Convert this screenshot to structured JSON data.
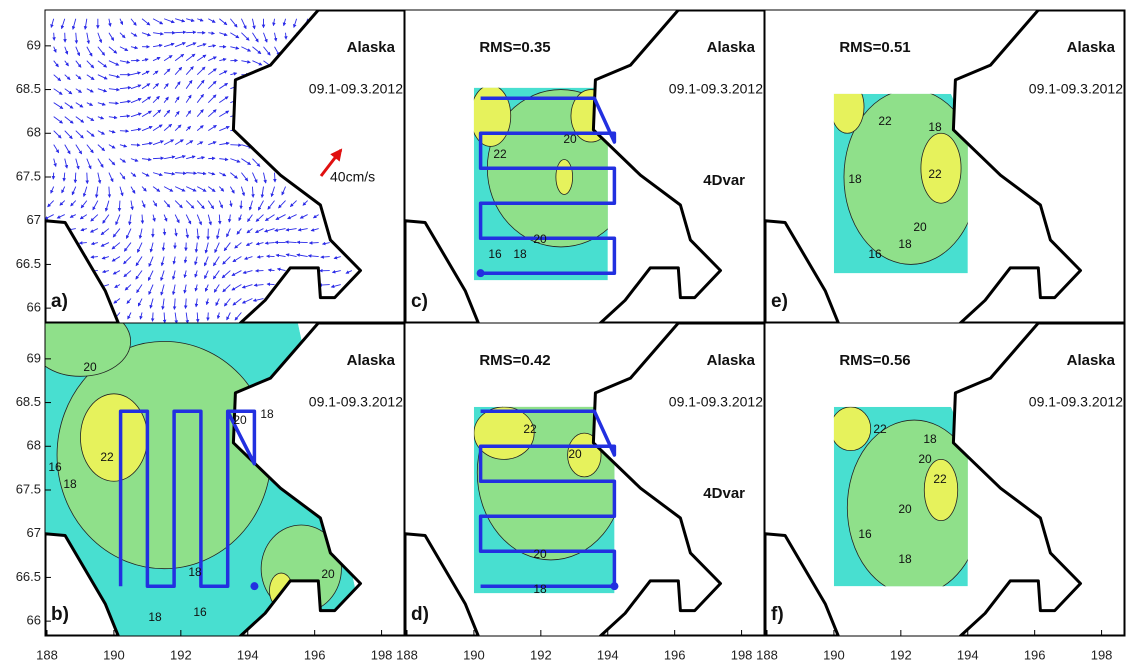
{
  "chart_data": [
    {
      "type": "vector",
      "panel": "a)",
      "region": "Alaska",
      "period": "09.1-09.3.2012",
      "scale_label": "40cm/s",
      "xlim": [
        187.94,
        198.7
      ],
      "ylim": [
        65.83,
        69.41
      ],
      "yticks": [
        66,
        66.5,
        67,
        67.5,
        68,
        68.5,
        69
      ]
    },
    {
      "type": "contour",
      "panel": "b)",
      "region": "Alaska",
      "period": "09.1-09.3.2012",
      "contour_labels": [
        "20",
        "22",
        "16",
        "18",
        "20",
        "18",
        "18",
        "16",
        "20",
        "18"
      ],
      "xlim": [
        187.94,
        198.7
      ],
      "ylim": [
        65.83,
        69.41
      ],
      "yticks": [
        66,
        66.5,
        67,
        67.5,
        68,
        68.5,
        69
      ],
      "xticks": [
        188,
        190,
        192,
        194,
        196,
        198
      ]
    },
    {
      "type": "contour",
      "panel": "c)",
      "region": "Alaska",
      "period": "09.1-09.3.2012",
      "rms": "RMS=0.35",
      "method": "4Dvar",
      "contour_labels": [
        "22",
        "20",
        "20",
        "18",
        "16"
      ],
      "xlim": [
        187.94,
        198.7
      ],
      "ylim": [
        65.83,
        69.41
      ]
    },
    {
      "type": "contour",
      "panel": "d)",
      "region": "Alaska",
      "period": "09.1-09.3.2012",
      "rms": "RMS=0.42",
      "method": "4Dvar",
      "contour_labels": [
        "22",
        "20",
        "20",
        "18"
      ],
      "xlim": [
        187.94,
        198.7
      ],
      "ylim": [
        65.83,
        69.41
      ],
      "xticks": [
        188,
        190,
        192,
        194,
        196,
        198
      ]
    },
    {
      "type": "contour",
      "panel": "e)",
      "region": "Alaska",
      "period": "09.1-09.3.2012",
      "rms": "RMS=0.51",
      "contour_labels": [
        "22",
        "18",
        "18",
        "22",
        "20",
        "18",
        "16"
      ],
      "xlim": [
        187.94,
        198.7
      ],
      "ylim": [
        65.83,
        69.41
      ]
    },
    {
      "type": "contour",
      "panel": "f)",
      "region": "Alaska",
      "period": "09.1-09.3.2012",
      "rms": "RMS=0.56",
      "contour_labels": [
        "22",
        "18",
        "20",
        "22",
        "20",
        "16",
        "18"
      ],
      "xlim": [
        187.94,
        198.7
      ],
      "ylim": [
        65.83,
        69.41
      ],
      "xticks": [
        188,
        190,
        192,
        194,
        196,
        198
      ]
    }
  ]
}
